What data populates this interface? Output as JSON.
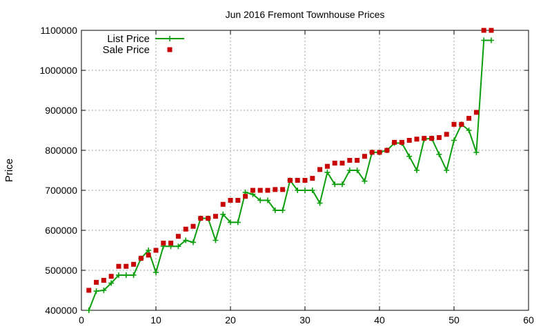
{
  "chart_data": {
    "type": "line",
    "title": "Jun 2016 Fremont Townhouse Prices",
    "xlabel": "",
    "ylabel": "Price",
    "xlim": [
      0,
      60
    ],
    "ylim": [
      400000,
      1100000
    ],
    "xticks": [
      0,
      10,
      20,
      30,
      40,
      50,
      60
    ],
    "yticks": [
      400000,
      500000,
      600000,
      700000,
      800000,
      900000,
      1000000,
      1100000
    ],
    "grid": true,
    "legend_position": "top-left",
    "series": [
      {
        "name": "List Price",
        "style": "line-plus",
        "color": "#0a9e0a",
        "x": [
          1,
          2,
          3,
          4,
          5,
          6,
          7,
          8,
          9,
          10,
          11,
          12,
          13,
          14,
          15,
          16,
          17,
          18,
          19,
          20,
          21,
          22,
          23,
          24,
          25,
          26,
          27,
          28,
          29,
          30,
          31,
          32,
          33,
          34,
          35,
          36,
          37,
          38,
          39,
          40,
          41,
          42,
          43,
          44,
          45,
          46,
          47,
          48,
          49,
          50,
          51,
          52,
          53,
          54,
          55
        ],
        "y": [
          400000,
          448000,
          450000,
          468000,
          488000,
          488000,
          488000,
          530000,
          550000,
          495000,
          560000,
          560000,
          560000,
          575000,
          570000,
          630000,
          630000,
          575000,
          640000,
          620000,
          620000,
          695000,
          690000,
          675000,
          675000,
          650000,
          650000,
          725000,
          700000,
          700000,
          700000,
          668000,
          745000,
          715000,
          715000,
          750000,
          750000,
          723000,
          795000,
          795000,
          800000,
          818000,
          818000,
          785000,
          750000,
          828000,
          830000,
          790000,
          750000,
          825000,
          865000,
          850000,
          795000,
          1075000,
          1075000
        ]
      },
      {
        "name": "Sale Price",
        "style": "square",
        "color": "#c80000",
        "x": [
          1,
          2,
          3,
          4,
          5,
          6,
          7,
          8,
          9,
          10,
          11,
          12,
          13,
          14,
          15,
          16,
          17,
          18,
          19,
          20,
          21,
          22,
          23,
          24,
          25,
          26,
          27,
          28,
          29,
          30,
          31,
          32,
          33,
          34,
          35,
          36,
          37,
          38,
          39,
          40,
          41,
          42,
          43,
          44,
          45,
          46,
          47,
          48,
          49,
          50,
          51,
          52,
          53,
          54,
          55
        ],
        "y": [
          450000,
          470000,
          475000,
          485000,
          510000,
          510000,
          515000,
          530000,
          538000,
          550000,
          568000,
          568000,
          585000,
          603000,
          610000,
          630000,
          630000,
          635000,
          665000,
          675000,
          675000,
          685000,
          700000,
          700000,
          700000,
          702000,
          702000,
          725000,
          725000,
          725000,
          730000,
          752000,
          760000,
          768000,
          768000,
          775000,
          775000,
          785000,
          795000,
          795000,
          800000,
          820000,
          820000,
          825000,
          828000,
          830000,
          830000,
          832000,
          840000,
          865000,
          865000,
          880000,
          895000,
          1100000,
          1100000
        ]
      }
    ]
  }
}
